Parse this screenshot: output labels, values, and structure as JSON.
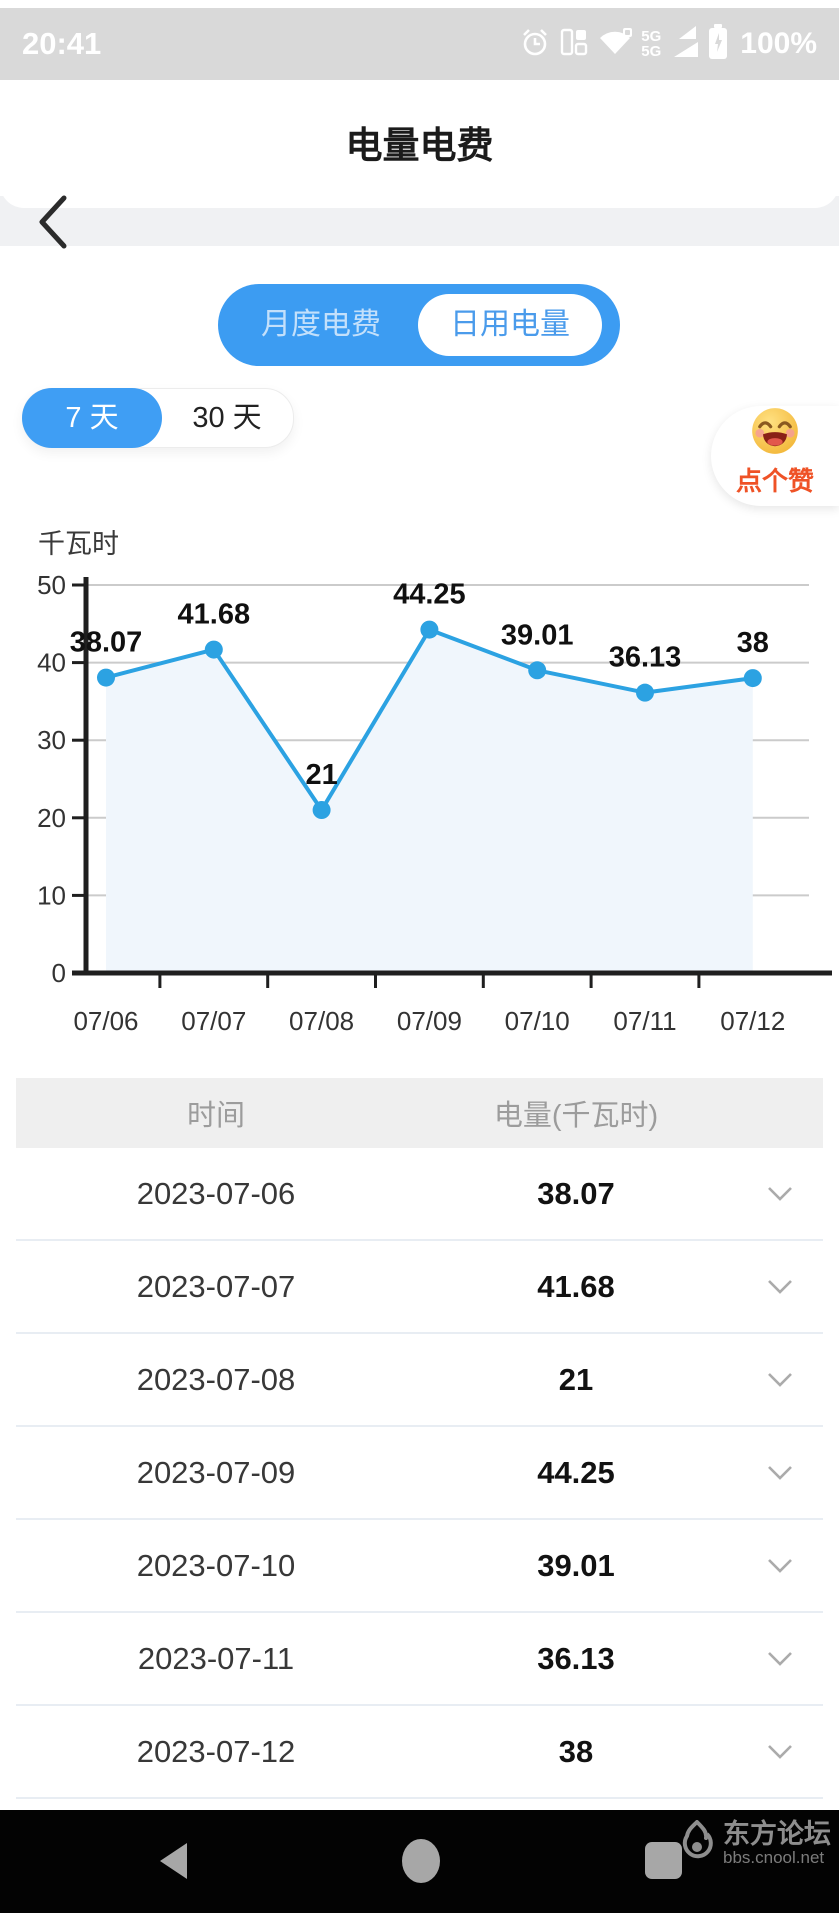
{
  "status_bar": {
    "time": "20:41",
    "network_top": "5G",
    "network_bottom": "5G",
    "battery_label": "100%"
  },
  "header": {
    "title": "电量电费"
  },
  "segmented_toggle": {
    "monthly_label": "月度电费",
    "daily_label": "日用电量"
  },
  "range_tabs": {
    "tab_7d": "7 天",
    "tab_30d": "30 天"
  },
  "like_sticker": {
    "label": "点个赞"
  },
  "chart_data": {
    "type": "line",
    "unit_label": "千瓦时",
    "x": [
      "07/06",
      "07/07",
      "07/08",
      "07/09",
      "07/10",
      "07/11",
      "07/12"
    ],
    "values": [
      38.07,
      41.68,
      21,
      44.25,
      39.01,
      36.13,
      38
    ],
    "ylim": [
      0,
      50
    ],
    "yticks": [
      0,
      10,
      20,
      30,
      40,
      50
    ],
    "grid": true,
    "legend": "none",
    "line_color": "#2CA2E2",
    "marker_color": "#2CA2E2",
    "area_fill_color": "#F0F6FC",
    "axis_color": "#1F1F1F",
    "grid_color": "#CBCBCB",
    "label_color": "#101010",
    "tick_color": "#333333"
  },
  "table": {
    "headers": [
      "时间",
      "电量(千瓦时)"
    ],
    "rows": [
      {
        "date": "2023-07-06",
        "value": "38.07"
      },
      {
        "date": "2023-07-07",
        "value": "41.68"
      },
      {
        "date": "2023-07-08",
        "value": "21"
      },
      {
        "date": "2023-07-09",
        "value": "44.25"
      },
      {
        "date": "2023-07-10",
        "value": "39.01"
      },
      {
        "date": "2023-07-11",
        "value": "36.13"
      },
      {
        "date": "2023-07-12",
        "value": "38"
      }
    ]
  },
  "watermark": {
    "title": "东方论坛",
    "subtitle": "bbs.cnool.net"
  }
}
